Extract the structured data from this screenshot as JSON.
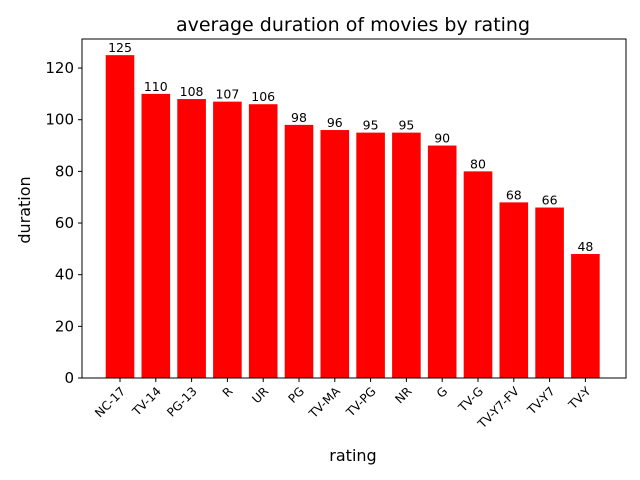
{
  "chart_data": {
    "type": "bar",
    "title": "average duration of movies by rating",
    "xlabel": "rating",
    "ylabel": "duration",
    "categories": [
      "NC-17",
      "TV-14",
      "PG-13",
      "R",
      "UR",
      "PG",
      "TV-MA",
      "TV-PG",
      "NR",
      "G",
      "TV-G",
      "TV-Y7-FV",
      "TV-Y7",
      "TV-Y"
    ],
    "values": [
      125,
      110,
      108,
      107,
      106,
      98,
      96,
      95,
      95,
      90,
      80,
      68,
      66,
      48
    ],
    "value_labels": [
      "125",
      "110",
      "108",
      "107",
      "106",
      "98",
      "96",
      "95",
      "95",
      "90",
      "80",
      "68",
      "66",
      "48"
    ],
    "ylim": [
      0,
      131.25
    ],
    "yticks": [
      0,
      20,
      40,
      60,
      80,
      100,
      120
    ],
    "bar_color": "#ff0000",
    "grid": false,
    "legend": "none"
  }
}
